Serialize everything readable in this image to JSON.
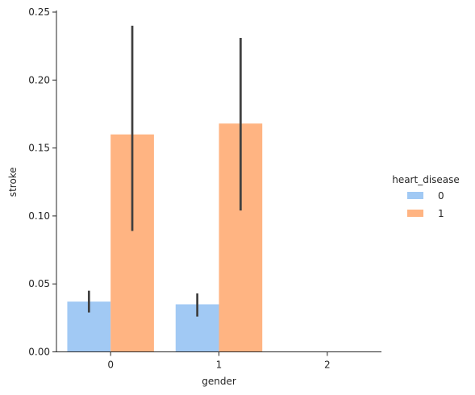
{
  "chart_data": {
    "type": "bar",
    "categories": [
      "0",
      "1",
      "2"
    ],
    "xlabel": "gender",
    "ylabel": "stroke",
    "ylim": [
      0,
      0.25
    ],
    "yticks": [
      "0.00",
      "0.05",
      "0.10",
      "0.15",
      "0.20",
      "0.25"
    ],
    "grid": false,
    "legend": {
      "title": "heart_disease",
      "placement": "center-right",
      "entries": [
        "0",
        "1"
      ]
    },
    "series": [
      {
        "name": "0",
        "color": "#a1c9f4",
        "values": [
          0.037,
          0.035,
          null
        ],
        "ci_low": [
          0.029,
          0.026,
          null
        ],
        "ci_high": [
          0.045,
          0.043,
          null
        ]
      },
      {
        "name": "1",
        "color": "#ffb482",
        "values": [
          0.16,
          0.168,
          null
        ],
        "ci_low": [
          0.089,
          0.104,
          null
        ],
        "ci_high": [
          0.24,
          0.231,
          null
        ]
      }
    ],
    "errorbar_color": "#3f3f3f"
  }
}
